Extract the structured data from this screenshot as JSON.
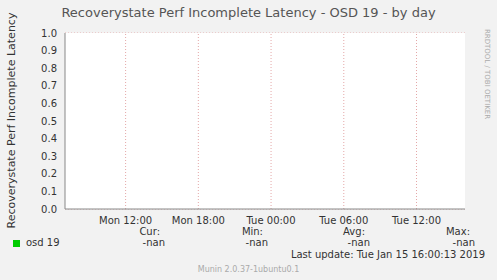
{
  "chart_data": {
    "type": "line",
    "title": "Recoverystate Perf Incomplete Latency - OSD 19 - by day",
    "y_label": "Recoverystate Perf Incomplete Latency",
    "categories": [
      null,
      null,
      null,
      null,
      null,
      "Mon 12:00",
      null,
      null,
      null,
      null,
      null,
      "Mon 18:00",
      null,
      null,
      null,
      null,
      null,
      "Tue 00:00",
      null,
      null,
      null,
      null,
      null,
      "Tue 06:00",
      null,
      null,
      null,
      null,
      null,
      "Tue 12:00",
      null,
      null,
      null,
      null
    ],
    "series": [
      {
        "name": "osd 19",
        "color": "#00cc00",
        "values": [
          null,
          null,
          null,
          null,
          null,
          null,
          null,
          null,
          null,
          null,
          null,
          null,
          null,
          null,
          null,
          null,
          null,
          null,
          null,
          null,
          null,
          null,
          null,
          null,
          null,
          null,
          null,
          null,
          null,
          null,
          null,
          null,
          null,
          null
        ],
        "stats": [
          "-nan",
          "-nan",
          "-nan",
          "-nan"
        ]
      }
    ],
    "legend_columns": [
      "Cur:",
      "Min:",
      "Avg:",
      "Max:"
    ],
    "ylim": [
      0,
      1
    ],
    "yticks": [
      {
        "value": 0,
        "label": "0.0"
      },
      0.1,
      0.2,
      0.3,
      0.4,
      0.5,
      0.6,
      0.7,
      0.8,
      0.9,
      {
        "value": 1,
        "label": "1.0"
      }
    ],
    "grid": true,
    "last_update": "Last update: Tue Jan 15 16:00:13 2019",
    "footer": "Munin 2.0.37-1ubuntu0.1",
    "side_label": "RRDTOOL / TOBI OETIKER"
  }
}
